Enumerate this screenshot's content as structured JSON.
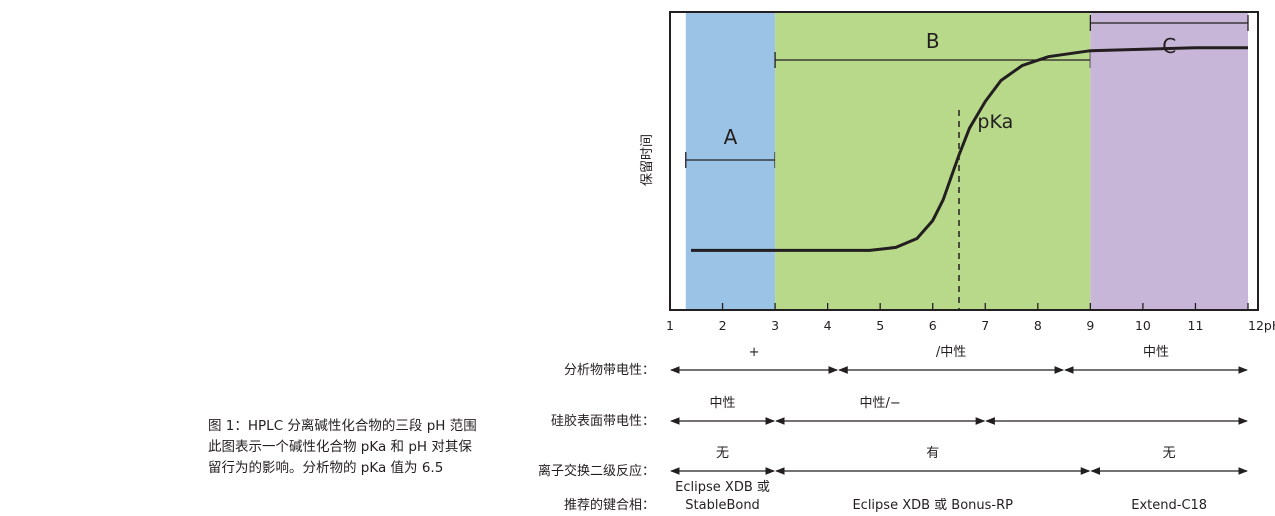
{
  "caption": {
    "line1": "图 1：HPLC 分离碱性化合物的三段 pH 范围",
    "line2": "此图表示一个碱性化合物 pKa 和 pH 对其保",
    "line3": "留行为的影响。分析物的 pKa 值为 6.5"
  },
  "chart_data": {
    "type": "line",
    "ylabel": "保留时间",
    "xlabel": "",
    "xlim": [
      1,
      12
    ],
    "x_ticks": [
      "1",
      "2",
      "3",
      "4",
      "5",
      "6",
      "7",
      "8",
      "9",
      "10",
      "11",
      "12pH"
    ],
    "grid": false,
    "regions": [
      {
        "label": "A",
        "from": 1.3,
        "to": 3.0,
        "color": "#9ac3e6"
      },
      {
        "label": "B",
        "from": 3.0,
        "to": 9.0,
        "color": "#b8d98a"
      },
      {
        "label": "C",
        "from": 9.0,
        "to": 12.0,
        "color": "#c8b6d9"
      }
    ],
    "pka": {
      "label": "pKa",
      "value": 6.5
    },
    "series": [
      {
        "x": [
          1.4,
          2.0,
          3.0,
          4.0,
          4.8,
          5.3,
          5.7,
          6.0,
          6.2,
          6.4,
          6.5,
          6.7,
          7.0,
          7.3,
          7.7,
          8.2,
          8.6,
          9.0,
          10.0,
          11.0,
          12.0
        ],
        "y": [
          0.2,
          0.2,
          0.2,
          0.2,
          0.2,
          0.21,
          0.24,
          0.3,
          0.37,
          0.47,
          0.52,
          0.61,
          0.7,
          0.77,
          0.82,
          0.85,
          0.86,
          0.87,
          0.875,
          0.88,
          0.88
        ]
      }
    ]
  },
  "table_rows": [
    {
      "label": "分析物带电性：",
      "segments": [
        {
          "text": "+",
          "from": 1.0,
          "to": 4.2
        },
        {
          "text": "/中性",
          "from": 4.2,
          "to": 8.5
        },
        {
          "text": "中性",
          "from": 8.5,
          "to": 12.0
        }
      ]
    },
    {
      "label": "硅胶表面带电性：",
      "segments": [
        {
          "text": "中性",
          "from": 1.0,
          "to": 3.0
        },
        {
          "text": "中性/−",
          "from": 3.0,
          "to": 7.0
        },
        {
          "text": "",
          "from": 7.0,
          "to": 12.0
        }
      ]
    },
    {
      "label": "离子交换二级反应：",
      "segments": [
        {
          "text": "无",
          "from": 1.0,
          "to": 3.0
        },
        {
          "text": "有",
          "from": 3.0,
          "to": 9.0
        },
        {
          "text": "无",
          "from": 9.0,
          "to": 12.0
        }
      ]
    },
    {
      "label": "推荐的键合相：",
      "phases": [
        {
          "lines": [
            "Eclipse XDB 或",
            "StableBond"
          ],
          "at": 2.0
        },
        {
          "lines": [
            "Eclipse XDB 或 Bonus-RP"
          ],
          "at": 6.0
        },
        {
          "lines": [
            "Extend-C18"
          ],
          "at": 10.5
        }
      ]
    }
  ]
}
